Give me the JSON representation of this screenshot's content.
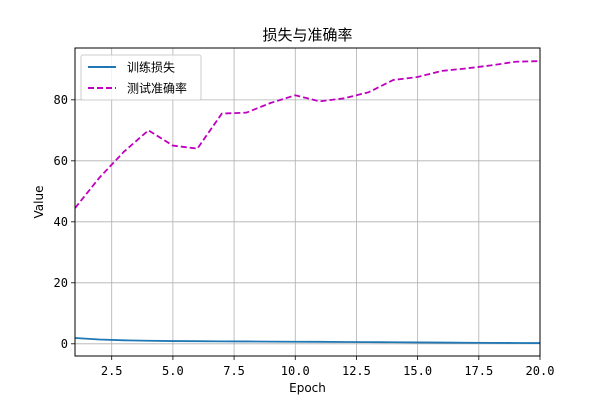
{
  "chart_data": {
    "type": "line",
    "title": "损失与准确率",
    "xlabel": "Epoch",
    "ylabel": "Value",
    "xlim": [
      1,
      20
    ],
    "ylim": [
      -4,
      97
    ],
    "xticks": [
      2.5,
      5.0,
      7.5,
      10.0,
      12.5,
      15.0,
      17.5,
      20.0
    ],
    "xtick_labels": [
      "2.5",
      "5.0",
      "7.5",
      "10.0",
      "12.5",
      "15.0",
      "17.5",
      "20.0"
    ],
    "yticks": [
      0,
      20,
      40,
      60,
      80
    ],
    "ytick_labels": [
      "0",
      "20",
      "40",
      "60",
      "80"
    ],
    "grid": true,
    "legend_position": "top-left",
    "x": [
      1,
      2,
      3,
      4,
      5,
      6,
      7,
      8,
      9,
      10,
      11,
      12,
      13,
      14,
      15,
      16,
      17,
      18,
      19,
      20
    ],
    "series": [
      {
        "name": "训练损失",
        "color": "#1f77b4",
        "linestyle": "solid",
        "values": [
          1.9,
          1.4,
          1.15,
          1.0,
          0.9,
          0.85,
          0.8,
          0.78,
          0.72,
          0.68,
          0.65,
          0.6,
          0.55,
          0.5,
          0.45,
          0.4,
          0.35,
          0.3,
          0.27,
          0.25
        ]
      },
      {
        "name": "测试准确率",
        "color": "#bf00bf",
        "linestyle": "dashed",
        "values": [
          44.5,
          54.5,
          63.0,
          70.0,
          65.0,
          64.0,
          75.5,
          75.8,
          79.0,
          81.5,
          79.5,
          80.5,
          82.5,
          86.5,
          87.5,
          89.5,
          90.3,
          91.3,
          92.5,
          92.7
        ]
      }
    ]
  }
}
